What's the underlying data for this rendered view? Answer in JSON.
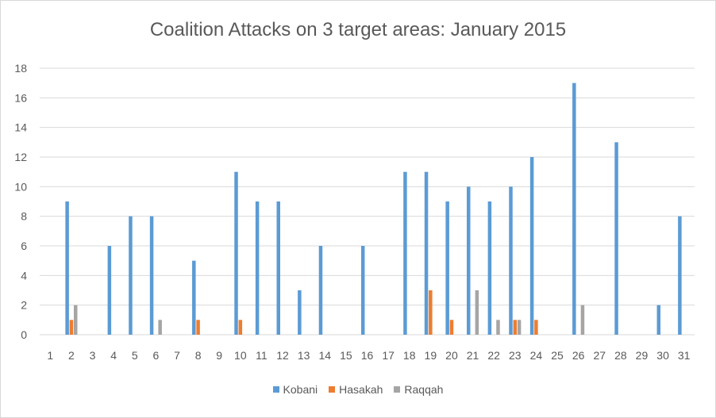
{
  "chart_data": {
    "type": "bar",
    "title": "Coalition Attacks on 3 target areas: January 2015",
    "xlabel": "",
    "ylabel": "",
    "ylim": [
      0,
      18
    ],
    "yticks": [
      "0",
      "2",
      "4",
      "6",
      "8",
      "10",
      "12",
      "14",
      "16",
      "18"
    ],
    "categories": [
      "1",
      "2",
      "3",
      "4",
      "5",
      "6",
      "7",
      "8",
      "9",
      "10",
      "11",
      "12",
      "13",
      "14",
      "15",
      "16",
      "17",
      "18",
      "19",
      "20",
      "21",
      "22",
      "23",
      "24",
      "25",
      "26",
      "27",
      "28",
      "29",
      "30",
      "31"
    ],
    "series": [
      {
        "name": "Kobani",
        "color": "#5b9bd5",
        "values": [
          0,
          9,
          0,
          6,
          8,
          8,
          0,
          5,
          0,
          11,
          9,
          9,
          3,
          6,
          0,
          6,
          0,
          11,
          11,
          9,
          10,
          9,
          10,
          12,
          0,
          17,
          0,
          13,
          0,
          2,
          8
        ]
      },
      {
        "name": "Hasakah",
        "color": "#ed7d31",
        "values": [
          0,
          1,
          0,
          0,
          0,
          0,
          0,
          1,
          0,
          1,
          0,
          0,
          0,
          0,
          0,
          0,
          0,
          0,
          3,
          1,
          0,
          0,
          1,
          1,
          0,
          0,
          0,
          0,
          0,
          0,
          0
        ]
      },
      {
        "name": "Raqqah",
        "color": "#a5a5a5",
        "values": [
          0,
          2,
          0,
          0,
          0,
          1,
          0,
          0,
          0,
          0,
          0,
          0,
          0,
          0,
          0,
          0,
          0,
          0,
          0,
          0,
          3,
          1,
          1,
          0,
          0,
          2,
          0,
          0,
          0,
          0,
          0
        ]
      }
    ],
    "grid": true,
    "legend_position": "bottom"
  }
}
